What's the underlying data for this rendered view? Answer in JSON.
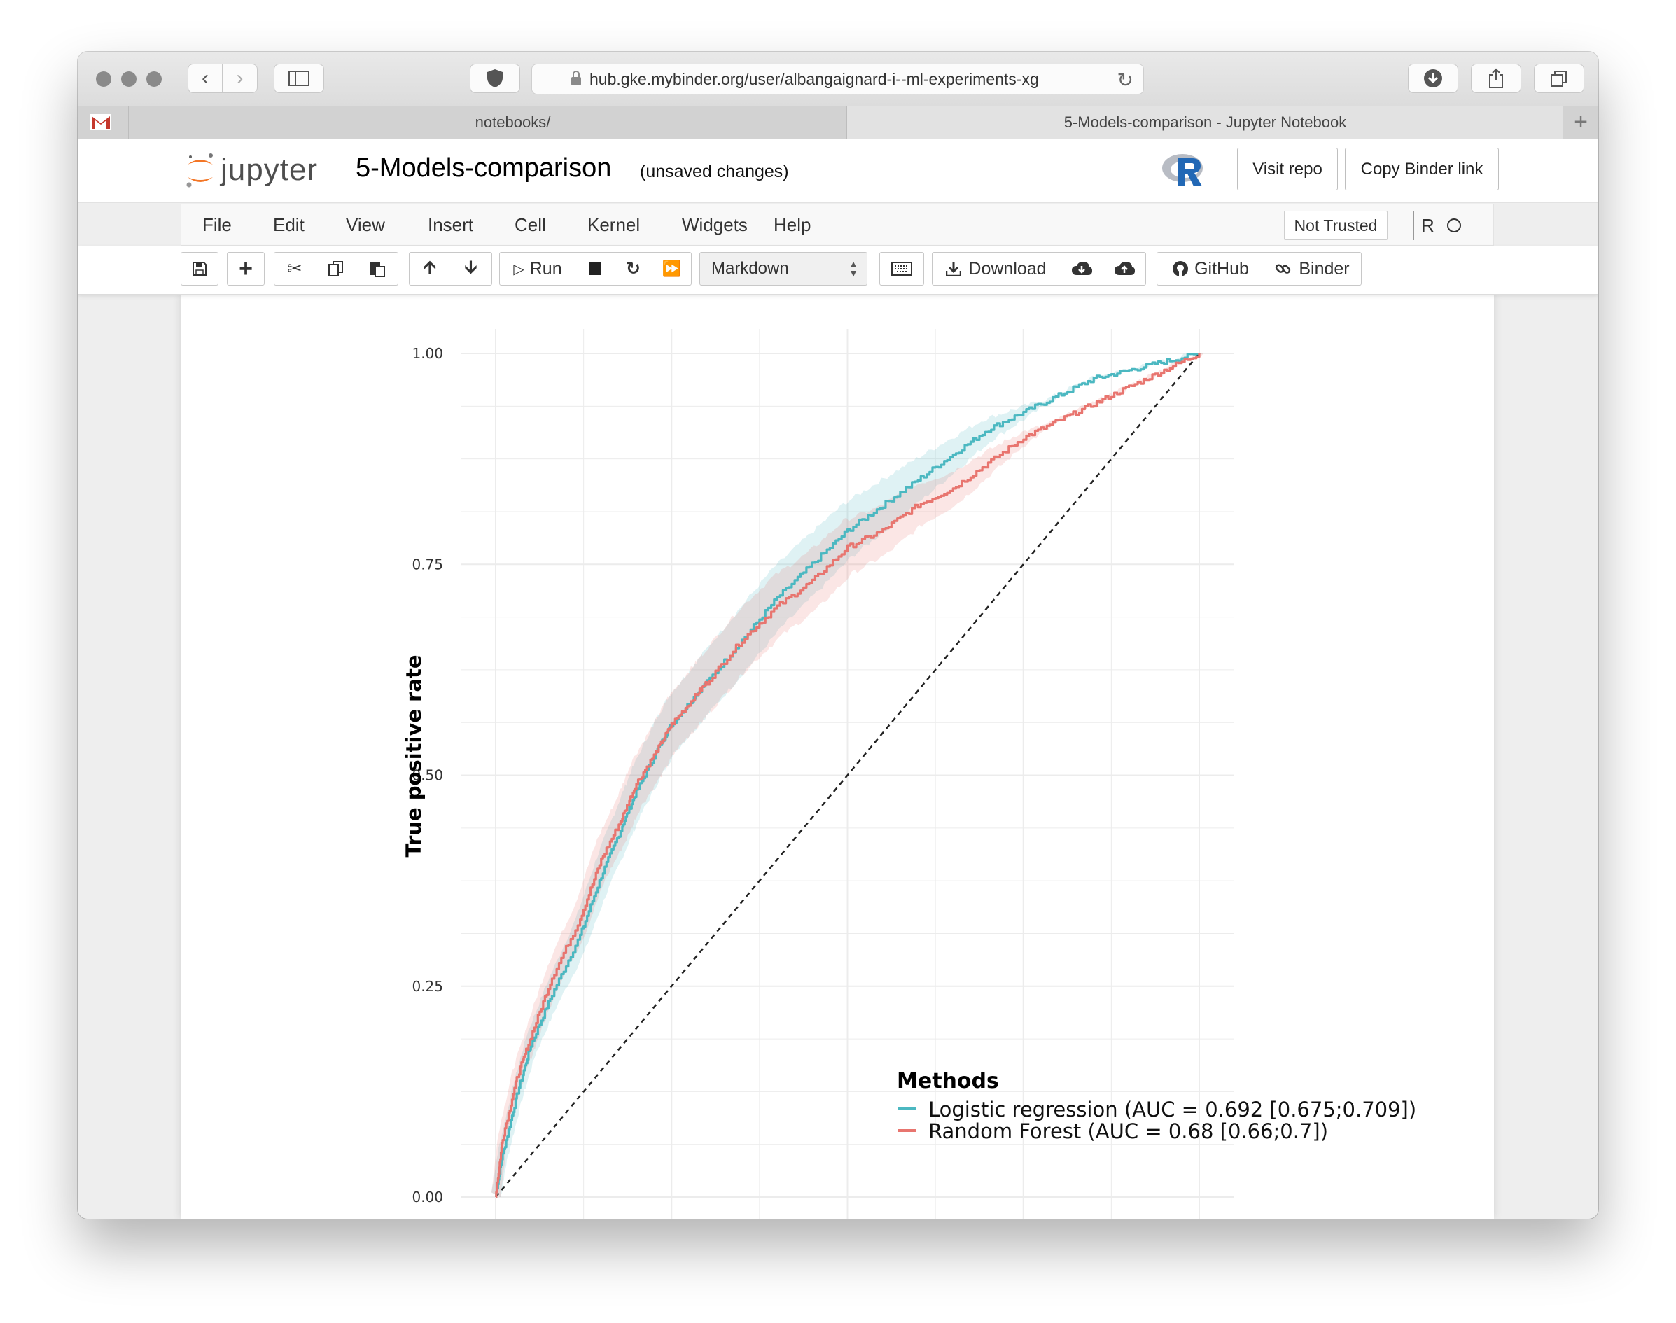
{
  "browser": {
    "url": "hub.gke.mybinder.org/user/albangaignard-i--ml-experiments-xg",
    "tabs": [
      "notebooks/",
      "5-Models-comparison - Jupyter Notebook"
    ]
  },
  "header": {
    "logo_text": "jupyter",
    "notebook_title": "5-Models-comparison",
    "save_status": "(unsaved changes)",
    "visit_repo_label": "Visit repo",
    "copy_binder_label": "Copy Binder link"
  },
  "menu": {
    "items": [
      "File",
      "Edit",
      "View",
      "Insert",
      "Cell",
      "Kernel",
      "Widgets",
      "Help"
    ],
    "trust_label": "Not Trusted",
    "kernel_label": "R"
  },
  "toolbar": {
    "run_label": "Run",
    "cell_type": "Markdown",
    "download_label": "Download",
    "github_label": "GitHub",
    "binder_label": "Binder"
  },
  "colors": {
    "logistic": "#4bb8c1",
    "forest": "#e8756f",
    "jupyter_orange": "#f37626"
  },
  "chart_data": {
    "type": "line",
    "ylabel": "True positive rate",
    "xlabel": "",
    "ylim": [
      0,
      1
    ],
    "xlim": [
      0,
      1
    ],
    "y_ticks": [
      "0.00",
      "0.25",
      "0.50",
      "0.75",
      "1.00"
    ],
    "legend_title": "Methods",
    "legend_position": "bottom-right",
    "series": [
      {
        "name": "Logistic regression (AUC = 0.692 [0.675;0.709])",
        "x": [
          0,
          0.01,
          0.03,
          0.05,
          0.08,
          0.12,
          0.15,
          0.18,
          0.2,
          0.23,
          0.25,
          0.28,
          0.3,
          0.35,
          0.4,
          0.45,
          0.5,
          0.55,
          0.6,
          0.65,
          0.7,
          0.75,
          0.8,
          0.85,
          0.9,
          0.95,
          1
        ],
        "y": [
          0,
          0.05,
          0.12,
          0.18,
          0.24,
          0.31,
          0.38,
          0.44,
          0.48,
          0.53,
          0.56,
          0.59,
          0.61,
          0.66,
          0.71,
          0.75,
          0.79,
          0.82,
          0.85,
          0.88,
          0.91,
          0.93,
          0.95,
          0.97,
          0.98,
          0.99,
          1
        ]
      },
      {
        "name": "Random Forest (AUC = 0.68 [0.66;0.7])",
        "x": [
          0,
          0.01,
          0.03,
          0.05,
          0.08,
          0.12,
          0.15,
          0.18,
          0.2,
          0.23,
          0.25,
          0.28,
          0.3,
          0.35,
          0.4,
          0.45,
          0.5,
          0.55,
          0.6,
          0.65,
          0.7,
          0.75,
          0.8,
          0.85,
          0.9,
          0.95,
          1
        ],
        "y": [
          0,
          0.07,
          0.14,
          0.19,
          0.26,
          0.33,
          0.4,
          0.45,
          0.49,
          0.53,
          0.56,
          0.59,
          0.61,
          0.66,
          0.7,
          0.73,
          0.77,
          0.79,
          0.82,
          0.84,
          0.87,
          0.9,
          0.92,
          0.94,
          0.96,
          0.98,
          1
        ]
      }
    ],
    "reference_line": "diagonal"
  }
}
